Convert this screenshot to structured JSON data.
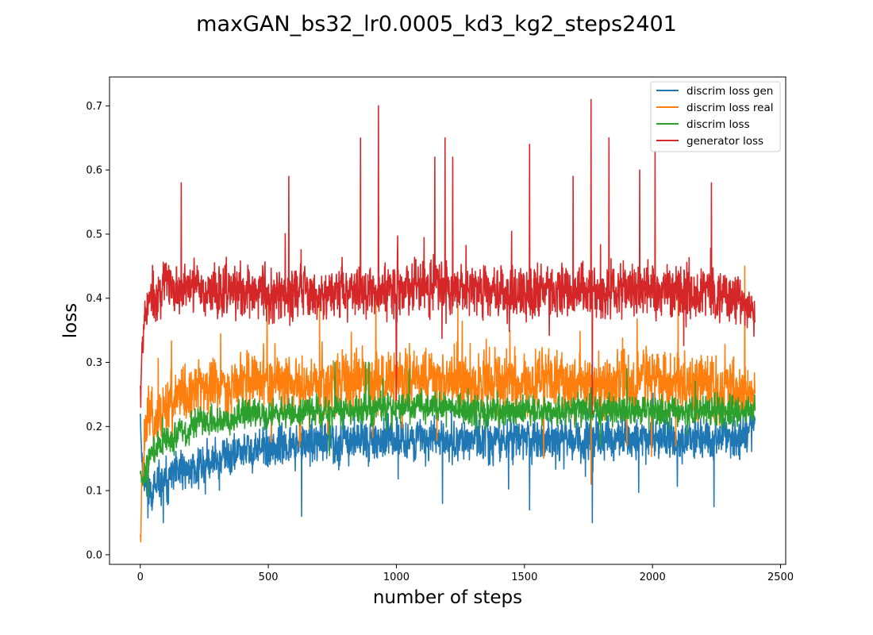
{
  "chart_data": {
    "type": "line",
    "title": "maxGAN_bs32_lr0.0005_kd3_kg2_steps2401",
    "xlabel": "number of steps",
    "ylabel": "loss",
    "xlim": [
      -120,
      2520
    ],
    "ylim": [
      -0.015,
      0.745
    ],
    "xticks": [
      0,
      500,
      1000,
      1500,
      2000,
      2500
    ],
    "yticks": [
      0.0,
      0.1,
      0.2,
      0.3,
      0.4,
      0.5,
      0.6,
      0.7
    ],
    "grid": false,
    "legend_position": "top-right",
    "n_steps": 2401,
    "series": [
      {
        "name": "discrim loss gen",
        "color": "#1f77b4",
        "x": [
          0,
          2,
          5,
          10,
          20,
          30,
          40,
          50,
          60,
          70,
          80,
          90,
          100,
          120,
          140,
          160,
          180,
          200,
          250,
          300,
          350,
          400,
          450,
          500,
          550,
          600,
          650,
          700,
          750,
          800,
          850,
          900,
          950,
          1000,
          1050,
          1100,
          1150,
          1200,
          1250,
          1300,
          1350,
          1400,
          1450,
          1500,
          1550,
          1600,
          1650,
          1700,
          1750,
          1800,
          1850,
          1900,
          1950,
          2000,
          2050,
          2100,
          2150,
          2200,
          2250,
          2300,
          2350,
          2400
        ],
        "mean": [
          0.22,
          0.2,
          0.16,
          0.13,
          0.11,
          0.1,
          0.1,
          0.1,
          0.1,
          0.105,
          0.11,
          0.11,
          0.115,
          0.12,
          0.125,
          0.13,
          0.13,
          0.135,
          0.14,
          0.15,
          0.155,
          0.16,
          0.165,
          0.165,
          0.17,
          0.17,
          0.175,
          0.175,
          0.175,
          0.18,
          0.18,
          0.18,
          0.18,
          0.18,
          0.18,
          0.18,
          0.18,
          0.18,
          0.18,
          0.18,
          0.18,
          0.18,
          0.18,
          0.18,
          0.18,
          0.18,
          0.18,
          0.18,
          0.18,
          0.18,
          0.18,
          0.18,
          0.18,
          0.18,
          0.18,
          0.18,
          0.18,
          0.18,
          0.18,
          0.18,
          0.18,
          0.21
        ],
        "spread": [
          0.0,
          0.02,
          0.02,
          0.03,
          0.03,
          0.035,
          0.035,
          0.035,
          0.035,
          0.035,
          0.035,
          0.035,
          0.035,
          0.035,
          0.035,
          0.035,
          0.035,
          0.035,
          0.035,
          0.035,
          0.035,
          0.035,
          0.035,
          0.035,
          0.035,
          0.035,
          0.035,
          0.035,
          0.035,
          0.035,
          0.035,
          0.035,
          0.035,
          0.035,
          0.035,
          0.035,
          0.035,
          0.035,
          0.035,
          0.035,
          0.035,
          0.035,
          0.035,
          0.035,
          0.035,
          0.035,
          0.035,
          0.035,
          0.035,
          0.035,
          0.035,
          0.035,
          0.035,
          0.035,
          0.035,
          0.035,
          0.035,
          0.035,
          0.035,
          0.035,
          0.035,
          0.02
        ],
        "extremes": [
          [
            90,
            0.05
          ],
          [
            630,
            0.06
          ],
          [
            1520,
            0.07
          ],
          [
            1765,
            0.05
          ],
          [
            2240,
            0.075
          ],
          [
            1180,
            0.08
          ]
        ]
      },
      {
        "name": "discrim loss real",
        "color": "#ff7f0e",
        "x": [
          0,
          2,
          5,
          10,
          20,
          30,
          40,
          50,
          60,
          70,
          80,
          90,
          100,
          120,
          140,
          160,
          180,
          200,
          250,
          300,
          350,
          400,
          450,
          500,
          550,
          600,
          650,
          700,
          750,
          800,
          850,
          900,
          950,
          1000,
          1050,
          1100,
          1150,
          1200,
          1250,
          1300,
          1350,
          1400,
          1450,
          1500,
          1550,
          1600,
          1650,
          1700,
          1750,
          1800,
          1850,
          1900,
          1950,
          2000,
          2050,
          2100,
          2150,
          2200,
          2250,
          2300,
          2350,
          2400
        ],
        "mean": [
          0.03,
          0.03,
          0.1,
          0.15,
          0.2,
          0.22,
          0.22,
          0.21,
          0.21,
          0.22,
          0.22,
          0.23,
          0.23,
          0.24,
          0.24,
          0.25,
          0.25,
          0.255,
          0.26,
          0.265,
          0.265,
          0.265,
          0.27,
          0.27,
          0.27,
          0.265,
          0.27,
          0.27,
          0.27,
          0.27,
          0.27,
          0.27,
          0.275,
          0.275,
          0.275,
          0.275,
          0.275,
          0.275,
          0.27,
          0.27,
          0.27,
          0.27,
          0.27,
          0.27,
          0.27,
          0.27,
          0.27,
          0.27,
          0.27,
          0.27,
          0.27,
          0.27,
          0.27,
          0.27,
          0.27,
          0.27,
          0.27,
          0.27,
          0.265,
          0.265,
          0.265,
          0.25
        ],
        "spread": [
          0.0,
          0.01,
          0.03,
          0.05,
          0.05,
          0.05,
          0.05,
          0.05,
          0.05,
          0.05,
          0.05,
          0.05,
          0.05,
          0.05,
          0.05,
          0.05,
          0.05,
          0.05,
          0.05,
          0.05,
          0.05,
          0.05,
          0.05,
          0.05,
          0.05,
          0.05,
          0.05,
          0.05,
          0.05,
          0.05,
          0.05,
          0.05,
          0.05,
          0.05,
          0.05,
          0.05,
          0.05,
          0.05,
          0.05,
          0.05,
          0.05,
          0.05,
          0.05,
          0.05,
          0.05,
          0.05,
          0.05,
          0.05,
          0.05,
          0.05,
          0.05,
          0.05,
          0.05,
          0.05,
          0.05,
          0.05,
          0.05,
          0.05,
          0.05,
          0.05,
          0.05,
          0.03
        ],
        "extremes": [
          [
            2,
            0.02
          ],
          [
            700,
            0.39
          ],
          [
            920,
            0.4
          ],
          [
            1240,
            0.39
          ],
          [
            2100,
            0.4
          ],
          [
            2360,
            0.45
          ],
          [
            1760,
            0.11
          ]
        ]
      },
      {
        "name": "discrim loss",
        "color": "#2ca02c",
        "x": [
          0,
          2,
          5,
          10,
          20,
          30,
          40,
          50,
          60,
          70,
          80,
          90,
          100,
          120,
          140,
          160,
          180,
          200,
          250,
          300,
          350,
          400,
          450,
          500,
          550,
          600,
          650,
          700,
          750,
          800,
          850,
          900,
          950,
          1000,
          1050,
          1100,
          1150,
          1200,
          1250,
          1300,
          1350,
          1400,
          1450,
          1500,
          1550,
          1600,
          1650,
          1700,
          1750,
          1800,
          1850,
          1900,
          1950,
          2000,
          2050,
          2100,
          2150,
          2200,
          2250,
          2300,
          2350,
          2400
        ],
        "mean": [
          0.13,
          0.13,
          0.12,
          0.12,
          0.13,
          0.15,
          0.16,
          0.16,
          0.16,
          0.17,
          0.17,
          0.17,
          0.18,
          0.18,
          0.19,
          0.19,
          0.19,
          0.2,
          0.21,
          0.21,
          0.215,
          0.22,
          0.22,
          0.22,
          0.225,
          0.22,
          0.225,
          0.225,
          0.225,
          0.225,
          0.225,
          0.225,
          0.23,
          0.23,
          0.23,
          0.23,
          0.23,
          0.23,
          0.225,
          0.225,
          0.225,
          0.225,
          0.225,
          0.225,
          0.225,
          0.225,
          0.225,
          0.225,
          0.225,
          0.225,
          0.225,
          0.225,
          0.225,
          0.225,
          0.225,
          0.225,
          0.225,
          0.225,
          0.225,
          0.22,
          0.22,
          0.23
        ],
        "spread": [
          0.0,
          0.01,
          0.01,
          0.015,
          0.02,
          0.025,
          0.025,
          0.025,
          0.025,
          0.025,
          0.025,
          0.025,
          0.025,
          0.025,
          0.025,
          0.025,
          0.025,
          0.025,
          0.025,
          0.025,
          0.025,
          0.025,
          0.025,
          0.025,
          0.025,
          0.025,
          0.025,
          0.025,
          0.025,
          0.025,
          0.025,
          0.025,
          0.025,
          0.025,
          0.025,
          0.025,
          0.025,
          0.025,
          0.025,
          0.025,
          0.025,
          0.025,
          0.025,
          0.025,
          0.025,
          0.025,
          0.025,
          0.025,
          0.025,
          0.025,
          0.025,
          0.025,
          0.025,
          0.025,
          0.025,
          0.025,
          0.025,
          0.025,
          0.025,
          0.025,
          0.025,
          0.015
        ],
        "extremes": [
          [
            760,
            0.3
          ],
          [
            880,
            0.3
          ],
          [
            1050,
            0.29
          ],
          [
            1900,
            0.29
          ],
          [
            30,
            0.09
          ]
        ]
      },
      {
        "name": "generator loss",
        "color": "#d62728",
        "x": [
          0,
          2,
          5,
          10,
          20,
          30,
          40,
          50,
          60,
          70,
          80,
          90,
          100,
          120,
          140,
          160,
          180,
          200,
          250,
          300,
          350,
          400,
          450,
          500,
          550,
          600,
          650,
          700,
          750,
          800,
          850,
          900,
          950,
          1000,
          1050,
          1100,
          1150,
          1200,
          1250,
          1300,
          1350,
          1400,
          1450,
          1500,
          1550,
          1600,
          1650,
          1700,
          1750,
          1800,
          1850,
          1900,
          1950,
          2000,
          2050,
          2100,
          2150,
          2200,
          2250,
          2300,
          2350,
          2400
        ],
        "mean": [
          0.26,
          0.27,
          0.3,
          0.36,
          0.38,
          0.39,
          0.4,
          0.4,
          0.4,
          0.41,
          0.41,
          0.42,
          0.42,
          0.42,
          0.42,
          0.42,
          0.42,
          0.42,
          0.41,
          0.41,
          0.41,
          0.41,
          0.41,
          0.41,
          0.41,
          0.41,
          0.41,
          0.41,
          0.41,
          0.41,
          0.41,
          0.41,
          0.41,
          0.42,
          0.42,
          0.42,
          0.42,
          0.42,
          0.41,
          0.41,
          0.41,
          0.41,
          0.41,
          0.41,
          0.41,
          0.41,
          0.41,
          0.41,
          0.41,
          0.41,
          0.41,
          0.41,
          0.41,
          0.41,
          0.41,
          0.41,
          0.41,
          0.41,
          0.4,
          0.4,
          0.39,
          0.37
        ],
        "spread": [
          0.0,
          0.01,
          0.03,
          0.04,
          0.04,
          0.045,
          0.045,
          0.045,
          0.045,
          0.045,
          0.045,
          0.045,
          0.045,
          0.045,
          0.045,
          0.045,
          0.045,
          0.045,
          0.045,
          0.045,
          0.045,
          0.045,
          0.045,
          0.045,
          0.045,
          0.045,
          0.045,
          0.045,
          0.045,
          0.045,
          0.045,
          0.045,
          0.045,
          0.045,
          0.045,
          0.045,
          0.045,
          0.045,
          0.045,
          0.045,
          0.045,
          0.045,
          0.045,
          0.045,
          0.045,
          0.045,
          0.045,
          0.045,
          0.045,
          0.045,
          0.045,
          0.045,
          0.045,
          0.045,
          0.045,
          0.045,
          0.045,
          0.045,
          0.045,
          0.045,
          0.045,
          0.03
        ],
        "extremes": [
          [
            2,
            0.23
          ],
          [
            160,
            0.58
          ],
          [
            580,
            0.59
          ],
          [
            860,
            0.65
          ],
          [
            930,
            0.7
          ],
          [
            1150,
            0.62
          ],
          [
            1190,
            0.65
          ],
          [
            1220,
            0.62
          ],
          [
            1520,
            0.64
          ],
          [
            1690,
            0.59
          ],
          [
            1760,
            0.71
          ],
          [
            1830,
            0.65
          ],
          [
            1950,
            0.6
          ],
          [
            2010,
            0.63
          ],
          [
            2230,
            0.58
          ],
          [
            1000,
            0.24
          ],
          [
            1765,
            0.22
          ]
        ]
      }
    ]
  }
}
